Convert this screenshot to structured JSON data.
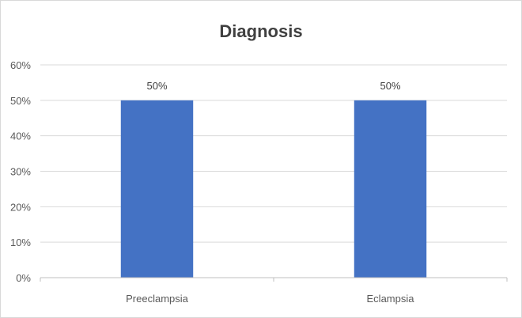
{
  "chart_data": {
    "type": "bar",
    "title": "Diagnosis",
    "categories": [
      "Preeclampsia",
      "Eclampsia"
    ],
    "values": [
      50,
      50
    ],
    "data_labels": [
      "50%",
      "50%"
    ],
    "ylim": [
      0,
      60
    ],
    "yticks": [
      0,
      10,
      20,
      30,
      40,
      50,
      60
    ],
    "ytick_labels": [
      "0%",
      "10%",
      "20%",
      "30%",
      "40%",
      "50%",
      "60%"
    ],
    "xlabel": "",
    "ylabel": "",
    "grid": true,
    "legend": "none",
    "bar_color": "#4472c4"
  }
}
